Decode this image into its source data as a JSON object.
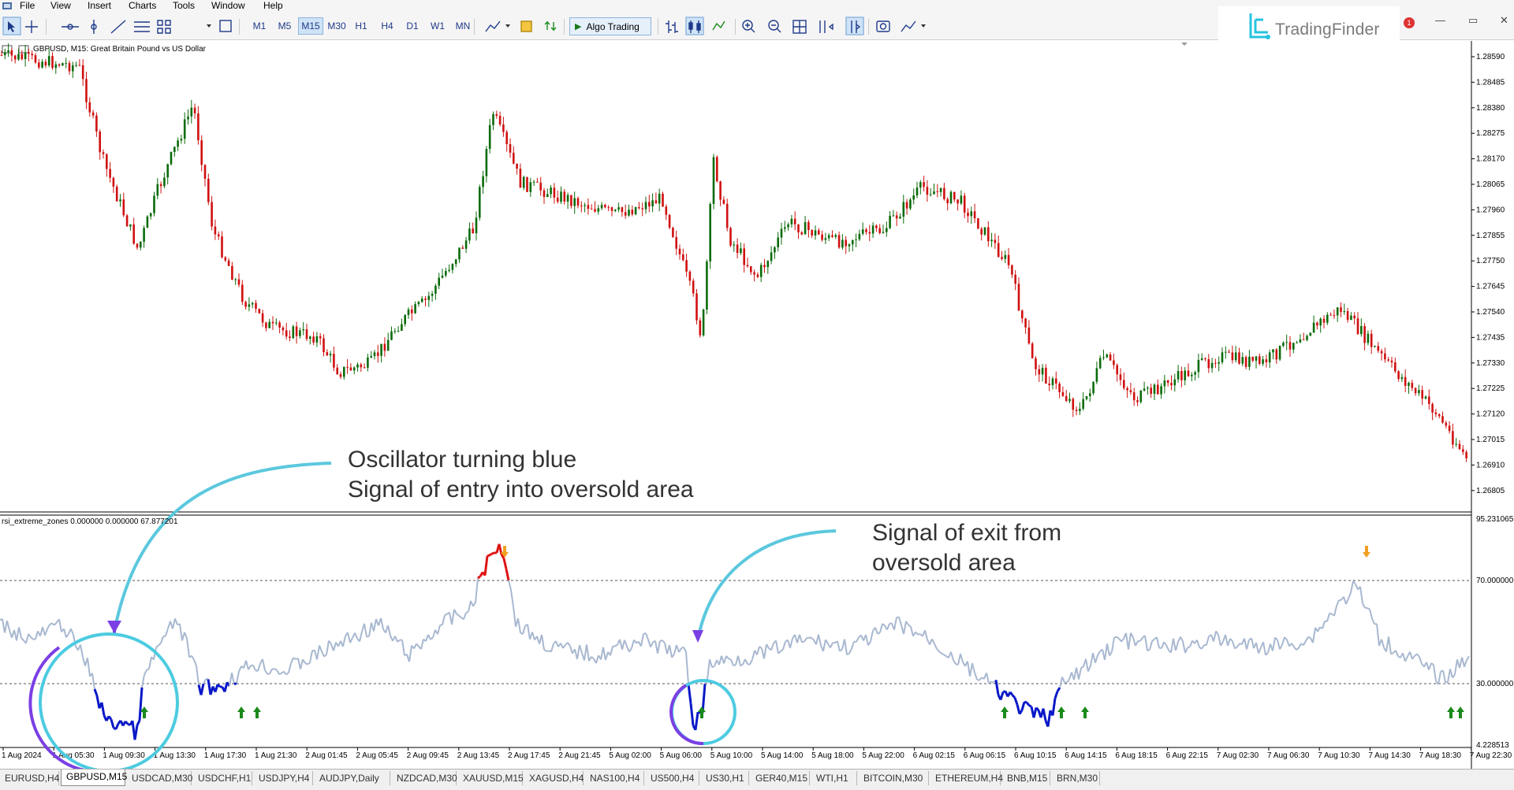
{
  "menu": [
    "File",
    "View",
    "Insert",
    "Charts",
    "Tools",
    "Window",
    "Help"
  ],
  "timeframes": [
    "M1",
    "M5",
    "M15",
    "M30",
    "H1",
    "H4",
    "D1",
    "W1",
    "MN"
  ],
  "active_timeframe": "M15",
  "algo_trading": "Algo Trading",
  "brand": "TradingFinder",
  "chart": {
    "title": "GBPUSD, M15:  Great Britain Pound vs US Dollar",
    "price_labels": [
      "1.28590",
      "1.28485",
      "1.28380",
      "1.28275",
      "1.28170",
      "1.28065",
      "1.27960",
      "1.27855",
      "1.27750",
      "1.27645",
      "1.27540",
      "1.27435",
      "1.27330",
      "1.27225",
      "1.27120",
      "1.27015",
      "1.26910",
      "1.26805"
    ],
    "time_labels": [
      "1 Aug 2024",
      "1 Aug 05:30",
      "1 Aug 09:30",
      "1 Aug 13:30",
      "1 Aug 17:30",
      "1 Aug 21:30",
      "2 Aug 01:45",
      "2 Aug 05:45",
      "2 Aug 09:45",
      "2 Aug 13:45",
      "2 Aug 17:45",
      "2 Aug 21:45",
      "5 Aug 02:00",
      "5 Aug 06:00",
      "5 Aug 10:00",
      "5 Aug 14:00",
      "5 Aug 18:00",
      "5 Aug 22:00",
      "6 Aug 02:15",
      "6 Aug 06:15",
      "6 Aug 10:15",
      "6 Aug 14:15",
      "6 Aug 18:15",
      "6 Aug 22:15",
      "7 Aug 02:30",
      "7 Aug 06:30",
      "7 Aug 10:30",
      "7 Aug 14:30",
      "7 Aug 18:30",
      "7 Aug 22:30"
    ]
  },
  "oscillator": {
    "title": "rsi_extreme_zones 0.000000 0.000000 67.877201",
    "levels": [
      "95.231065",
      "70.000000",
      "30.000000",
      "4.228513"
    ],
    "colors": {
      "normal": "#a8b8d0",
      "oversold": "#0a18c8",
      "overbought": "#e01414",
      "up_arrow": "#1a8a1a",
      "down_arrow": "#f0a020"
    }
  },
  "annotations": {
    "entry_line1": "Oscillator turning blue",
    "entry_line2": "Signal of entry into oversold area",
    "exit_line1": "Signal of exit from",
    "exit_line2": "oversold area"
  },
  "symbol_tabs": [
    "EURUSD,H4",
    "GBPUSD,M15",
    "USDCAD,M30",
    "USDCHF,H1",
    "USDJPY,H4",
    "AUDJPY,Daily",
    "NZDCAD,M30",
    "XAUUSD,M15",
    "XAGUSD,H4",
    "NAS100,H4",
    "US500,H4",
    "US30,H1",
    "GER40,M15",
    "WTI,H1",
    "BITCOIN,M30",
    "ETHEREUM,H4",
    "BNB,M15",
    "BRN,M30"
  ],
  "active_tab": "GBPUSD,M15",
  "notification_count": "1"
}
